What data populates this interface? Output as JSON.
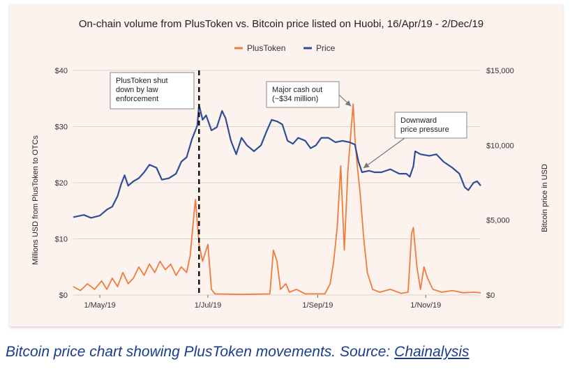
{
  "chart_data": {
    "type": "line",
    "title": "On-chain volume from PlusToken vs. Bitcoin price listed on Huobi, 16/Apr/19 - 2/Dec/19",
    "ylabel_left": "Millions USD from PlusToken to OTCs",
    "ylabel_right": "Bitcoin price in USD",
    "x_range": [
      "2019-04-16",
      "2019-12-02"
    ],
    "ylim_left": [
      0,
      40
    ],
    "ylim_right": [
      0,
      15000
    ],
    "left_ticks": [
      {
        "v": 0,
        "label": "$0"
      },
      {
        "v": 10,
        "label": "$10"
      },
      {
        "v": 20,
        "label": "$20"
      },
      {
        "v": 30,
        "label": "$30"
      },
      {
        "v": 40,
        "label": "$40"
      }
    ],
    "right_ticks": [
      {
        "v": 0,
        "label": "$0"
      },
      {
        "v": 5000,
        "label": "$5,000"
      },
      {
        "v": 10000,
        "label": "$10,000"
      },
      {
        "v": 15000,
        "label": "$15,000"
      }
    ],
    "x_ticks": [
      {
        "date": "2019-05-01",
        "label": "1/May/19"
      },
      {
        "date": "2019-07-01",
        "label": "1/Jul/19"
      },
      {
        "date": "2019-09-01",
        "label": "1/Sep/19"
      },
      {
        "date": "2019-11-01",
        "label": "1/Nov/19"
      }
    ],
    "grid": true,
    "legend_position": "top-center",
    "series": [
      {
        "name": "PlusToken",
        "axis": "left",
        "color": "#f07c3c",
        "points": [
          [
            "2019-04-16",
            1.5
          ],
          [
            "2019-04-20",
            0.8
          ],
          [
            "2019-04-24",
            2.0
          ],
          [
            "2019-04-28",
            1.0
          ],
          [
            "2019-05-02",
            2.5
          ],
          [
            "2019-05-05",
            1.0
          ],
          [
            "2019-05-08",
            3.0
          ],
          [
            "2019-05-11",
            1.5
          ],
          [
            "2019-05-14",
            4.0
          ],
          [
            "2019-05-17",
            2.0
          ],
          [
            "2019-05-20",
            3.0
          ],
          [
            "2019-05-23",
            5.0
          ],
          [
            "2019-05-26",
            3.5
          ],
          [
            "2019-05-29",
            5.5
          ],
          [
            "2019-06-01",
            4.0
          ],
          [
            "2019-06-04",
            6.0
          ],
          [
            "2019-06-07",
            4.5
          ],
          [
            "2019-06-10",
            5.5
          ],
          [
            "2019-06-13",
            3.5
          ],
          [
            "2019-06-16",
            5.0
          ],
          [
            "2019-06-19",
            4.0
          ],
          [
            "2019-06-21",
            7.0
          ],
          [
            "2019-06-23",
            14.0
          ],
          [
            "2019-06-24",
            17.0
          ],
          [
            "2019-06-26",
            9.0
          ],
          [
            "2019-06-28",
            6.0
          ],
          [
            "2019-06-30",
            8.0
          ],
          [
            "2019-07-01",
            9.0
          ],
          [
            "2019-07-03",
            1.0
          ],
          [
            "2019-07-05",
            0.2
          ],
          [
            "2019-07-20",
            0.1
          ],
          [
            "2019-08-05",
            0.2
          ],
          [
            "2019-08-07",
            8.0
          ],
          [
            "2019-08-09",
            6.0
          ],
          [
            "2019-08-11",
            1.0
          ],
          [
            "2019-08-14",
            2.0
          ],
          [
            "2019-08-16",
            0.5
          ],
          [
            "2019-08-20",
            1.0
          ],
          [
            "2019-08-25",
            0.2
          ],
          [
            "2019-09-05",
            0.2
          ],
          [
            "2019-09-08",
            2.0
          ],
          [
            "2019-09-10",
            6.0
          ],
          [
            "2019-09-12",
            12.0
          ],
          [
            "2019-09-14",
            23.0
          ],
          [
            "2019-09-16",
            8.0
          ],
          [
            "2019-09-18",
            22.0
          ],
          [
            "2019-09-20",
            30.0
          ],
          [
            "2019-09-21",
            34.0
          ],
          [
            "2019-09-22",
            28.0
          ],
          [
            "2019-09-23",
            24.0
          ],
          [
            "2019-09-25",
            18.0
          ],
          [
            "2019-09-27",
            10.0
          ],
          [
            "2019-09-29",
            4.0
          ],
          [
            "2019-10-02",
            1.0
          ],
          [
            "2019-10-06",
            0.5
          ],
          [
            "2019-10-12",
            1.0
          ],
          [
            "2019-10-18",
            0.3
          ],
          [
            "2019-10-22",
            0.5
          ],
          [
            "2019-10-24",
            11.0
          ],
          [
            "2019-10-25",
            12.0
          ],
          [
            "2019-10-27",
            5.0
          ],
          [
            "2019-10-29",
            1.0
          ],
          [
            "2019-10-31",
            5.0
          ],
          [
            "2019-11-02",
            3.0
          ],
          [
            "2019-11-05",
            1.0
          ],
          [
            "2019-11-10",
            0.5
          ],
          [
            "2019-11-16",
            0.8
          ],
          [
            "2019-11-22",
            0.4
          ],
          [
            "2019-11-28",
            0.5
          ],
          [
            "2019-12-02",
            0.4
          ]
        ]
      },
      {
        "name": "Price",
        "axis": "right",
        "color": "#2f4d96",
        "points": [
          [
            "2019-04-16",
            5200
          ],
          [
            "2019-04-22",
            5350
          ],
          [
            "2019-04-26",
            5150
          ],
          [
            "2019-05-01",
            5300
          ],
          [
            "2019-05-05",
            5700
          ],
          [
            "2019-05-08",
            5900
          ],
          [
            "2019-05-11",
            6600
          ],
          [
            "2019-05-13",
            7400
          ],
          [
            "2019-05-15",
            8000
          ],
          [
            "2019-05-17",
            7300
          ],
          [
            "2019-05-20",
            7600
          ],
          [
            "2019-05-23",
            7800
          ],
          [
            "2019-05-26",
            8200
          ],
          [
            "2019-05-29",
            8700
          ],
          [
            "2019-06-02",
            8500
          ],
          [
            "2019-06-05",
            7700
          ],
          [
            "2019-06-09",
            7800
          ],
          [
            "2019-06-13",
            8100
          ],
          [
            "2019-06-16",
            8900
          ],
          [
            "2019-06-19",
            9200
          ],
          [
            "2019-06-22",
            10400
          ],
          [
            "2019-06-25",
            11300
          ],
          [
            "2019-06-26",
            12700
          ],
          [
            "2019-06-28",
            11700
          ],
          [
            "2019-06-30",
            12000
          ],
          [
            "2019-07-03",
            11000
          ],
          [
            "2019-07-06",
            11200
          ],
          [
            "2019-07-09",
            12300
          ],
          [
            "2019-07-11",
            11800
          ],
          [
            "2019-07-14",
            10300
          ],
          [
            "2019-07-17",
            9400
          ],
          [
            "2019-07-20",
            10500
          ],
          [
            "2019-07-23",
            10000
          ],
          [
            "2019-07-27",
            9600
          ],
          [
            "2019-07-31",
            10000
          ],
          [
            "2019-08-03",
            10900
          ],
          [
            "2019-08-06",
            11700
          ],
          [
            "2019-08-09",
            11600
          ],
          [
            "2019-08-12",
            11400
          ],
          [
            "2019-08-15",
            10300
          ],
          [
            "2019-08-18",
            10100
          ],
          [
            "2019-08-21",
            10500
          ],
          [
            "2019-08-25",
            10300
          ],
          [
            "2019-08-28",
            9800
          ],
          [
            "2019-08-31",
            10000
          ],
          [
            "2019-09-03",
            10500
          ],
          [
            "2019-09-07",
            10500
          ],
          [
            "2019-09-11",
            10200
          ],
          [
            "2019-09-15",
            10300
          ],
          [
            "2019-09-19",
            10200
          ],
          [
            "2019-09-22",
            10050
          ],
          [
            "2019-09-24",
            8900
          ],
          [
            "2019-09-26",
            8200
          ],
          [
            "2019-09-30",
            8300
          ],
          [
            "2019-10-03",
            8200
          ],
          [
            "2019-10-07",
            8200
          ],
          [
            "2019-10-12",
            8400
          ],
          [
            "2019-10-17",
            8100
          ],
          [
            "2019-10-21",
            8100
          ],
          [
            "2019-10-23",
            7900
          ],
          [
            "2019-10-25",
            8600
          ],
          [
            "2019-10-26",
            9600
          ],
          [
            "2019-10-29",
            9400
          ],
          [
            "2019-11-03",
            9300
          ],
          [
            "2019-11-07",
            9400
          ],
          [
            "2019-11-11",
            8900
          ],
          [
            "2019-11-16",
            8500
          ],
          [
            "2019-11-20",
            8100
          ],
          [
            "2019-11-23",
            7200
          ],
          [
            "2019-11-25",
            7000
          ],
          [
            "2019-11-28",
            7500
          ],
          [
            "2019-11-30",
            7600
          ],
          [
            "2019-12-02",
            7300
          ]
        ]
      }
    ],
    "annotations": [
      {
        "id": "shutdown",
        "text": [
          "PlusToken shut",
          "down by law",
          "enforcement"
        ],
        "date": "2019-06-26",
        "marker": "dashed-vertical-line"
      },
      {
        "id": "cashout",
        "text": [
          "Major cash out",
          "(~$34 million)"
        ],
        "date": "2019-09-21",
        "value": 34
      },
      {
        "id": "pressure",
        "text": [
          "Downward",
          "price pressure"
        ],
        "date": "2019-09-26",
        "price": 8200
      }
    ]
  },
  "caption": {
    "text": "Bitcoin price chart showing PlusToken movements. Source: ",
    "link": "Chainalysis"
  }
}
